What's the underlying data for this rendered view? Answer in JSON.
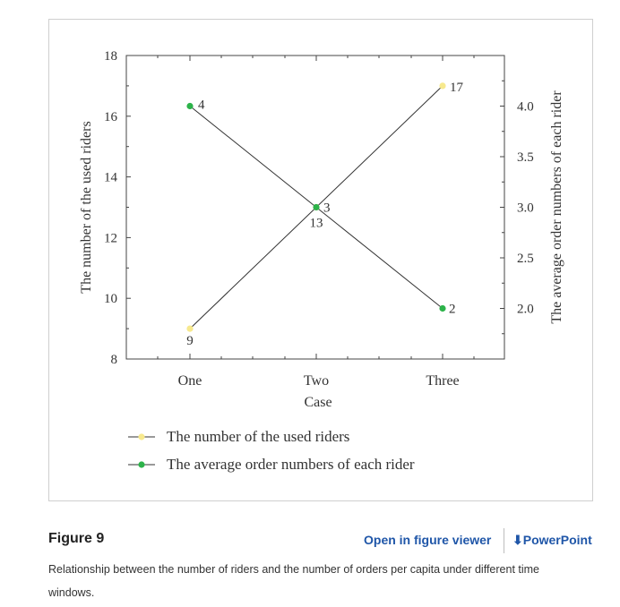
{
  "chart_data": {
    "type": "line",
    "xlabel": "Case",
    "categories": [
      "One",
      "Two",
      "Three"
    ],
    "y_left": {
      "label": "The number of the used riders",
      "lim": [
        8,
        18
      ],
      "ticks": [
        8,
        10,
        12,
        14,
        16,
        18
      ]
    },
    "y_right": {
      "label": "The average order numbers of each rider",
      "lim": [
        1.5,
        4.5
      ],
      "ticks": [
        "2.0",
        "2.5",
        "3.0",
        "3.5",
        "4.0"
      ]
    },
    "series": [
      {
        "name": "The number of the used riders",
        "axis": "left",
        "color": "#f7e98e",
        "values": [
          9,
          13,
          17
        ],
        "labels": [
          "9",
          "13",
          "17"
        ]
      },
      {
        "name": "The average order numbers of each rider",
        "axis": "right",
        "color": "#2db34a",
        "values": [
          4,
          3,
          2
        ],
        "labels": [
          "4",
          "3",
          "2"
        ]
      }
    ],
    "legend_position": "bottom"
  },
  "figure": {
    "title": "Figure 9",
    "open_viewer": "Open in figure viewer",
    "powerpoint": "PowerPoint",
    "caption": "Relationship between the number of riders and the number of orders per capita under different time windows."
  }
}
